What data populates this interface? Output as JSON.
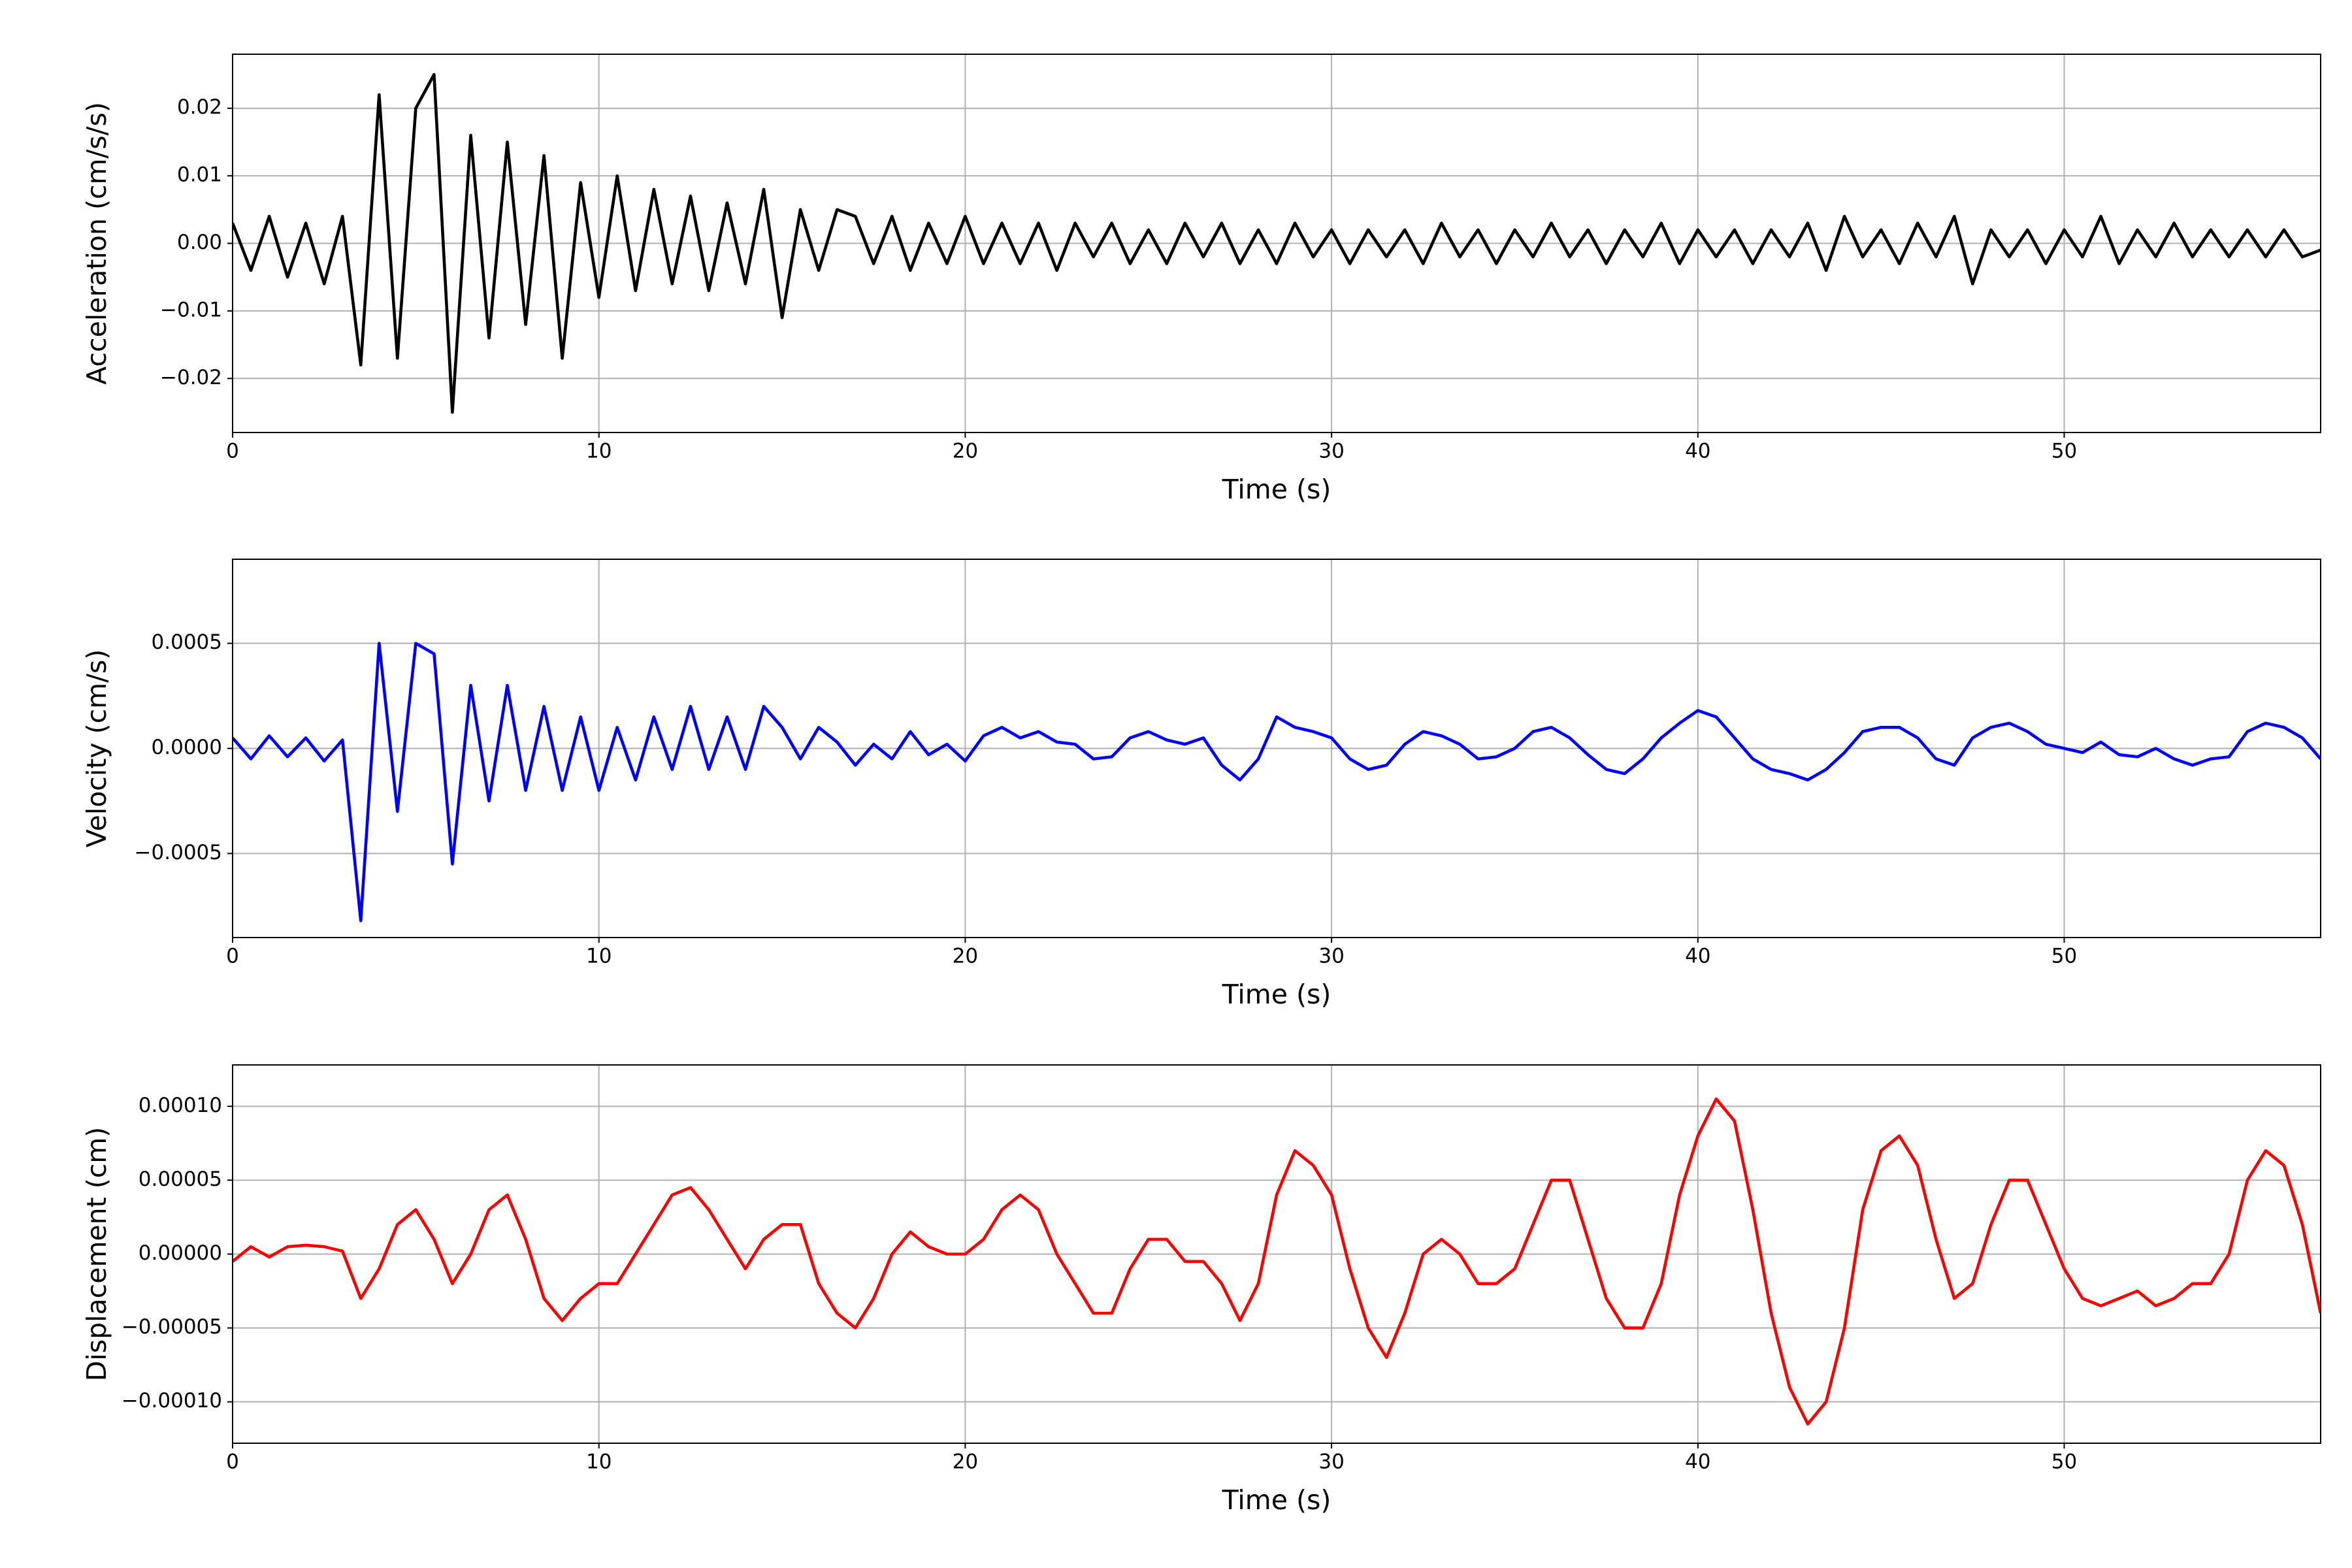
{
  "chart_data": [
    {
      "type": "line",
      "xlabel": "Time (s)",
      "ylabel": "Acceleration (cm/s/s)",
      "xlim": [
        0,
        57
      ],
      "xticks": [
        0,
        10,
        20,
        30,
        40,
        50
      ],
      "ylim": [
        -0.028,
        0.028
      ],
      "yticks": [
        {
          "value": -0.02,
          "label": "−0.02"
        },
        {
          "value": -0.01,
          "label": "−0.01"
        },
        {
          "value": 0,
          "label": "0.00"
        },
        0.01,
        0.02
      ],
      "grid": true,
      "x": [
        0,
        0.5,
        1,
        1.5,
        2,
        2.5,
        3,
        3.5,
        4,
        4.5,
        5,
        5.5,
        6,
        6.5,
        7,
        7.5,
        8,
        8.5,
        9,
        9.5,
        10,
        10.5,
        11,
        11.5,
        12,
        12.5,
        13,
        13.5,
        14,
        14.5,
        15,
        15.5,
        16,
        16.5,
        17,
        17.5,
        18,
        18.5,
        19,
        19.5,
        20,
        20.5,
        21,
        21.5,
        22,
        22.5,
        23,
        23.5,
        24,
        24.5,
        25,
        25.5,
        26,
        26.5,
        27,
        27.5,
        28,
        28.5,
        29,
        29.5,
        30,
        30.5,
        31,
        31.5,
        32,
        32.5,
        33,
        33.5,
        34,
        34.5,
        35,
        35.5,
        36,
        36.5,
        37,
        37.5,
        38,
        38.5,
        39,
        39.5,
        40,
        40.5,
        41,
        41.5,
        42,
        42.5,
        43,
        43.5,
        44,
        44.5,
        45,
        45.5,
        46,
        46.5,
        47,
        47.5,
        48,
        48.5,
        49,
        49.5,
        50,
        50.5,
        51,
        51.5,
        52,
        52.5,
        53,
        53.5,
        54,
        54.5,
        55,
        55.5,
        56,
        56.5,
        57
      ],
      "series": [
        {
          "color": "#000000",
          "values": [
            0.003,
            -0.004,
            0.004,
            -0.005,
            0.003,
            -0.006,
            0.004,
            -0.018,
            0.022,
            -0.017,
            0.02,
            0.025,
            -0.025,
            0.016,
            -0.014,
            0.015,
            -0.012,
            0.013,
            -0.017,
            0.009,
            -0.008,
            0.01,
            -0.007,
            0.008,
            -0.006,
            0.007,
            -0.007,
            0.006,
            -0.006,
            0.008,
            -0.011,
            0.005,
            -0.004,
            0.005,
            0.004,
            -0.003,
            0.004,
            -0.004,
            0.003,
            -0.003,
            0.004,
            -0.003,
            0.003,
            -0.003,
            0.003,
            -0.004,
            0.003,
            -0.002,
            0.003,
            -0.003,
            0.002,
            -0.003,
            0.003,
            -0.002,
            0.003,
            -0.003,
            0.002,
            -0.003,
            0.003,
            -0.002,
            0.002,
            -0.003,
            0.002,
            -0.002,
            0.002,
            -0.003,
            0.003,
            -0.002,
            0.002,
            -0.003,
            0.002,
            -0.002,
            0.003,
            -0.002,
            0.002,
            -0.003,
            0.002,
            -0.002,
            0.003,
            -0.003,
            0.002,
            -0.002,
            0.002,
            -0.003,
            0.002,
            -0.002,
            0.003,
            -0.004,
            0.004,
            -0.002,
            0.002,
            -0.003,
            0.003,
            -0.002,
            0.004,
            -0.006,
            0.002,
            -0.002,
            0.002,
            -0.003,
            0.002,
            -0.002,
            0.004,
            -0.003,
            0.002,
            -0.002,
            0.003,
            -0.002,
            0.002,
            -0.002,
            0.002,
            -0.002,
            0.002,
            -0.002,
            -0.001
          ]
        }
      ]
    },
    {
      "type": "line",
      "xlabel": "Time (s)",
      "ylabel": "Velocity (cm/s)",
      "xlim": [
        0,
        57
      ],
      "xticks": [
        0,
        10,
        20,
        30,
        40,
        50
      ],
      "ylim": [
        -0.0009,
        0.0009
      ],
      "yticks": [
        {
          "value": -0.0005,
          "label": "−0.0005"
        },
        {
          "value": 0,
          "label": "0.0000"
        },
        0.0005
      ],
      "grid": true,
      "x": [
        0,
        0.5,
        1,
        1.5,
        2,
        2.5,
        3,
        3.5,
        4,
        4.5,
        5,
        5.5,
        6,
        6.5,
        7,
        7.5,
        8,
        8.5,
        9,
        9.5,
        10,
        10.5,
        11,
        11.5,
        12,
        12.5,
        13,
        13.5,
        14,
        14.5,
        15,
        15.5,
        16,
        16.5,
        17,
        17.5,
        18,
        18.5,
        19,
        19.5,
        20,
        20.5,
        21,
        21.5,
        22,
        22.5,
        23,
        23.5,
        24,
        24.5,
        25,
        25.5,
        26,
        26.5,
        27,
        27.5,
        28,
        28.5,
        29,
        29.5,
        30,
        30.5,
        31,
        31.5,
        32,
        32.5,
        33,
        33.5,
        34,
        34.5,
        35,
        35.5,
        36,
        36.5,
        37,
        37.5,
        38,
        38.5,
        39,
        39.5,
        40,
        40.5,
        41,
        41.5,
        42,
        42.5,
        43,
        43.5,
        44,
        44.5,
        45,
        45.5,
        46,
        46.5,
        47,
        47.5,
        48,
        48.5,
        49,
        49.5,
        50,
        50.5,
        51,
        51.5,
        52,
        52.5,
        53,
        53.5,
        54,
        54.5,
        55,
        55.5,
        56,
        56.5,
        57
      ],
      "series": [
        {
          "color": "#0000ff",
          "values": [
            5e-05,
            -5e-05,
            6e-05,
            -4e-05,
            5e-05,
            -6e-05,
            4e-05,
            -0.00082,
            0.0005,
            -0.0003,
            0.0005,
            0.00045,
            -0.00055,
            0.0003,
            -0.00025,
            0.0003,
            -0.0002,
            0.0002,
            -0.0002,
            0.00015,
            -0.0002,
            0.0001,
            -0.00015,
            0.00015,
            -0.0001,
            0.0002,
            -0.0001,
            0.00015,
            -0.0001,
            0.0002,
            0.0001,
            -5e-05,
            0.0001,
            3e-05,
            -8e-05,
            2e-05,
            -5e-05,
            8e-05,
            -3e-05,
            2e-05,
            -6e-05,
            6e-05,
            0.0001,
            5e-05,
            8e-05,
            3e-05,
            2e-05,
            -5e-05,
            -4e-05,
            5e-05,
            8e-05,
            4e-05,
            2e-05,
            5e-05,
            -8e-05,
            -0.00015,
            -5e-05,
            0.00015,
            0.0001,
            8e-05,
            5e-05,
            -5e-05,
            -0.0001,
            -8e-05,
            2e-05,
            8e-05,
            6e-05,
            2e-05,
            -5e-05,
            -4e-05,
            0,
            8e-05,
            0.0001,
            5e-05,
            -3e-05,
            -0.0001,
            -0.00012,
            -5e-05,
            5e-05,
            0.00012,
            0.00018,
            0.00015,
            5e-05,
            -5e-05,
            -0.0001,
            -0.00012,
            -0.00015,
            -0.0001,
            -2e-05,
            8e-05,
            0.0001,
            0.0001,
            5e-05,
            -5e-05,
            -8e-05,
            5e-05,
            0.0001,
            0.00012,
            8e-05,
            2e-05,
            0,
            -2e-05,
            3e-05,
            -3e-05,
            -4e-05,
            0,
            -5e-05,
            -8e-05,
            -5e-05,
            -4e-05,
            8e-05,
            0.00012,
            0.0001,
            5e-05,
            -5e-05
          ]
        }
      ]
    },
    {
      "type": "line",
      "xlabel": "Time (s)",
      "ylabel": "Displacement (cm)",
      "xlim": [
        0,
        57
      ],
      "xticks": [
        0,
        10,
        20,
        30,
        40,
        50
      ],
      "ylim": [
        -0.000128,
        0.000128
      ],
      "yticks": [
        {
          "value": -0.0001,
          "label": "−0.00010"
        },
        {
          "value": -5e-05,
          "label": "−0.00005"
        },
        {
          "value": 0,
          "label": "0.00000"
        },
        {
          "value": 5e-05,
          "label": "0.00005"
        },
        {
          "value": 0.0001,
          "label": "0.00010"
        }
      ],
      "grid": true,
      "x": [
        0,
        0.5,
        1,
        1.5,
        2,
        2.5,
        3,
        3.5,
        4,
        4.5,
        5,
        5.5,
        6,
        6.5,
        7,
        7.5,
        8,
        8.5,
        9,
        9.5,
        10,
        10.5,
        11,
        11.5,
        12,
        12.5,
        13,
        13.5,
        14,
        14.5,
        15,
        15.5,
        16,
        16.5,
        17,
        17.5,
        18,
        18.5,
        19,
        19.5,
        20,
        20.5,
        21,
        21.5,
        22,
        22.5,
        23,
        23.5,
        24,
        24.5,
        25,
        25.5,
        26,
        26.5,
        27,
        27.5,
        28,
        28.5,
        29,
        29.5,
        30,
        30.5,
        31,
        31.5,
        32,
        32.5,
        33,
        33.5,
        34,
        34.5,
        35,
        35.5,
        36,
        36.5,
        37,
        37.5,
        38,
        38.5,
        39,
        39.5,
        40,
        40.5,
        41,
        41.5,
        42,
        42.5,
        43,
        43.5,
        44,
        44.5,
        45,
        45.5,
        46,
        46.5,
        47,
        47.5,
        48,
        48.5,
        49,
        49.5,
        50,
        50.5,
        51,
        51.5,
        52,
        52.5,
        53,
        53.5,
        54,
        54.5,
        55,
        55.5,
        56,
        56.5,
        57
      ],
      "series": [
        {
          "color": "#ff0000",
          "values": [
            -5e-06,
            5e-06,
            -2e-06,
            5e-06,
            6e-06,
            5e-06,
            2e-06,
            -3e-05,
            -1e-05,
            2e-05,
            3e-05,
            1e-05,
            -2e-05,
            0,
            3e-05,
            4e-05,
            1e-05,
            -3e-05,
            -4.5e-05,
            -3e-05,
            -2e-05,
            -2e-05,
            0,
            2e-05,
            4e-05,
            4.5e-05,
            3e-05,
            1e-05,
            -1e-05,
            1e-05,
            2e-05,
            2e-05,
            -2e-05,
            -4e-05,
            -5e-05,
            -3e-05,
            0,
            1.5e-05,
            5e-06,
            0,
            0,
            1e-05,
            3e-05,
            4e-05,
            3e-05,
            0,
            -2e-05,
            -4e-05,
            -4e-05,
            -1e-05,
            1e-05,
            1e-05,
            -5e-06,
            -5e-06,
            -2e-05,
            -4.5e-05,
            -2e-05,
            4e-05,
            7e-05,
            6e-05,
            4e-05,
            -1e-05,
            -5e-05,
            -7e-05,
            -4e-05,
            0,
            1e-05,
            0,
            -2e-05,
            -2e-05,
            -1e-05,
            2e-05,
            5e-05,
            5e-05,
            1e-05,
            -3e-05,
            -5e-05,
            -5e-05,
            -2e-05,
            4e-05,
            8e-05,
            0.000105,
            9e-05,
            3e-05,
            -4e-05,
            -9e-05,
            -0.000115,
            -0.0001,
            -5e-05,
            3e-05,
            7e-05,
            8e-05,
            6e-05,
            1e-05,
            -3e-05,
            -2e-05,
            2e-05,
            5e-05,
            5e-05,
            2e-05,
            -1e-05,
            -3e-05,
            -3.5e-05,
            -3e-05,
            -2.5e-05,
            -3.5e-05,
            -3e-05,
            -2e-05,
            -2e-05,
            0,
            5e-05,
            7e-05,
            6e-05,
            2e-05,
            -4e-05
          ]
        }
      ]
    }
  ]
}
